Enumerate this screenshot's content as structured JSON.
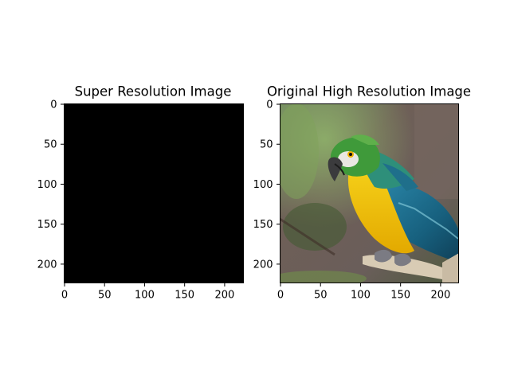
{
  "chart_data": [
    {
      "type": "image",
      "title": "Super Resolution Image",
      "image_width": 224,
      "image_height": 224,
      "content": "solid-black",
      "fill_color": "#000000",
      "x_ticks": [
        0,
        50,
        100,
        150,
        200
      ],
      "y_ticks": [
        0,
        50,
        100,
        150,
        200
      ],
      "xlim": [
        -0.5,
        223.5
      ],
      "ylim": [
        223.5,
        -0.5
      ]
    },
    {
      "type": "image",
      "title": "Original High Resolution Image",
      "image_width": 224,
      "image_height": 224,
      "content": "photo-parrot",
      "x_ticks": [
        0,
        50,
        100,
        150,
        200
      ],
      "y_ticks": [
        0,
        50,
        100,
        150,
        200
      ],
      "xlim": [
        -0.5,
        223.5
      ],
      "ylim": [
        223.5,
        -0.5
      ]
    }
  ],
  "colors": {
    "background": "#ffffff",
    "axis": "#000000",
    "macaw_blue": "#1f6f8b",
    "macaw_yellow": "#f2c200",
    "macaw_green": "#3f9a3a",
    "perch": "#d8cbb4",
    "bokeh_green": "#5b7a4a",
    "bokeh_brown": "#6b5a4e"
  }
}
